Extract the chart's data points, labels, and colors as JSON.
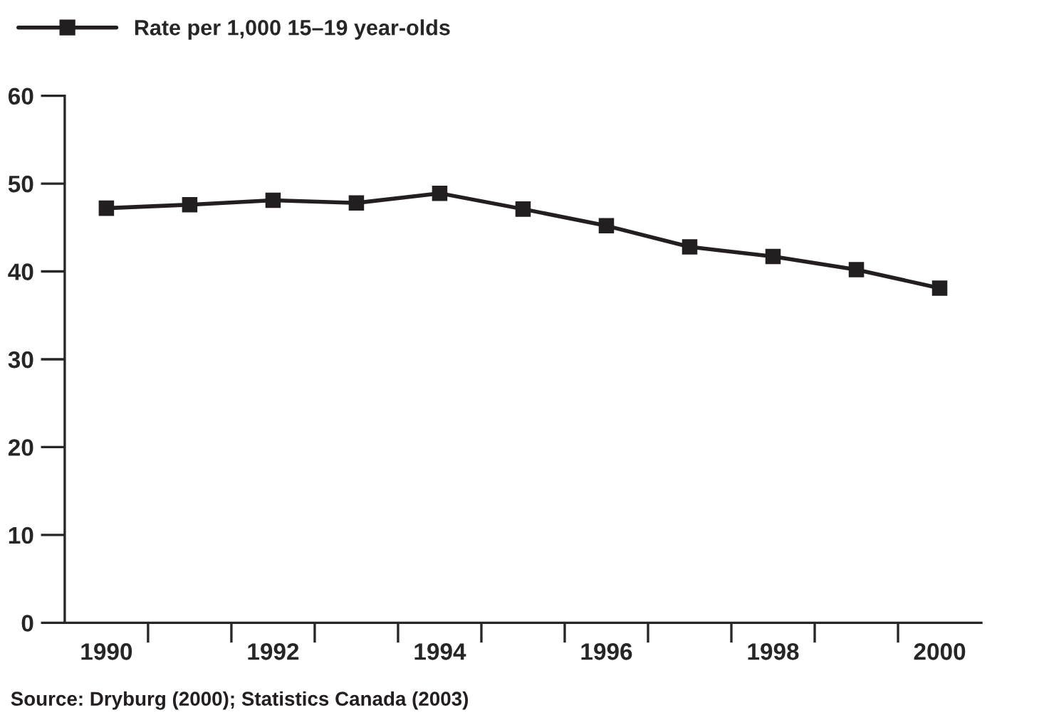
{
  "chart_data": {
    "type": "line",
    "categories": [
      "1990",
      null,
      "1992",
      null,
      "1994",
      null,
      "1996",
      null,
      "1998",
      null,
      "2000"
    ],
    "series": [
      {
        "name": "Rate per 1,000 15–19 year-olds",
        "color": "#231f20",
        "values": [
          47.2,
          47.6,
          48.1,
          47.8,
          48.9,
          47.1,
          45.2,
          42.8,
          41.7,
          40.2,
          38.1
        ]
      }
    ],
    "ylim": [
      0,
      60
    ],
    "yticks": [
      0,
      10,
      20,
      30,
      40,
      50,
      60
    ],
    "grid": false,
    "legend": "top left",
    "marker": "square",
    "line_style": "solid",
    "annotations": [
      "Source: Dryburg (2000); Statistics Canada (2003)"
    ]
  }
}
